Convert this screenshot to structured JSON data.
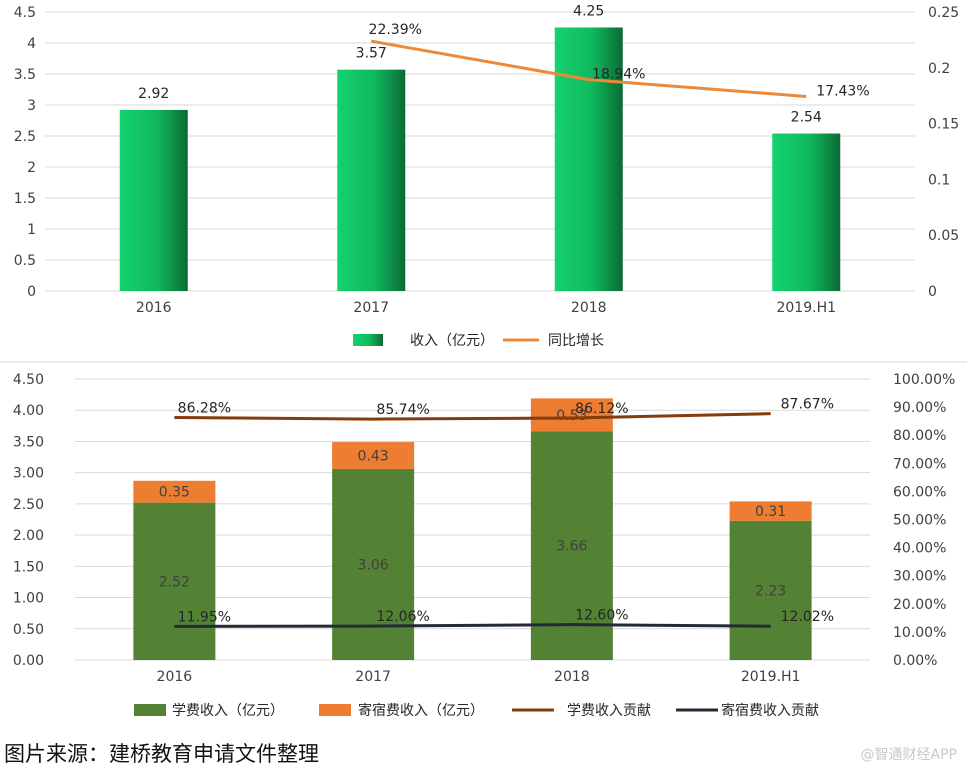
{
  "chart_data": [
    {
      "type": "bar",
      "categories": [
        "2016",
        "2017",
        "2018",
        "2019.H1"
      ],
      "series": [
        {
          "name": "收入（亿元）",
          "type": "bar",
          "axis": "left",
          "values": [
            2.92,
            3.57,
            4.25,
            2.54
          ],
          "labels": [
            "2.92",
            "3.57",
            "4.25",
            "2.54"
          ],
          "color": "#1ec36a"
        },
        {
          "name": "同比增长",
          "type": "line",
          "axis": "right",
          "values": [
            null,
            0.2239,
            0.1894,
            0.1743
          ],
          "labels": [
            "",
            "22.39%",
            "18.94%",
            "17.43%"
          ],
          "color": "#ed8a3a"
        }
      ],
      "ylim": [
        0,
        4.5
      ],
      "y_ticks": [
        "0",
        "0.5",
        "1",
        "1.5",
        "2",
        "2.5",
        "3",
        "3.5",
        "4",
        "4.5"
      ],
      "y2lim": [
        0,
        0.25
      ],
      "y2_ticks": [
        "0",
        "0.05",
        "0.1",
        "0.15",
        "0.2",
        "0.25"
      ],
      "grid": true,
      "legend": "bottom"
    },
    {
      "type": "bar",
      "stacked": true,
      "categories": [
        "2016",
        "2017",
        "2018",
        "2019.H1"
      ],
      "series": [
        {
          "name": "学费收入（亿元）",
          "type": "bar",
          "axis": "left",
          "values": [
            2.52,
            3.06,
            3.66,
            2.23
          ],
          "labels": [
            "2.52",
            "3.06",
            "3.66",
            "2.23"
          ],
          "color": "#548235"
        },
        {
          "name": "寄宿费收入（亿元）",
          "type": "bar",
          "axis": "left",
          "values": [
            0.35,
            0.43,
            0.53,
            0.31
          ],
          "labels": [
            "0.35",
            "0.43",
            "0.53",
            "0.31"
          ],
          "color": "#ed7d31"
        },
        {
          "name": "学费收入贡献",
          "type": "line",
          "axis": "right",
          "values": [
            0.8628,
            0.8574,
            0.8612,
            0.8767
          ],
          "labels": [
            "86.28%",
            "85.74%",
            "86.12%",
            "87.67%"
          ],
          "color": "#843c0c"
        },
        {
          "name": "寄宿费收入贡献",
          "type": "line",
          "axis": "right",
          "values": [
            0.1195,
            0.1206,
            0.126,
            0.1202
          ],
          "labels": [
            "11.95%",
            "12.06%",
            "12.60%",
            "12.02%"
          ],
          "color": "#222a35"
        }
      ],
      "ylim": [
        0,
        4.5
      ],
      "y_ticks": [
        "0.00",
        "0.50",
        "1.00",
        "1.50",
        "2.00",
        "2.50",
        "3.00",
        "3.50",
        "4.00",
        "4.50"
      ],
      "y2lim": [
        0,
        1
      ],
      "y2_ticks": [
        "0.00%",
        "10.00%",
        "20.00%",
        "30.00%",
        "40.00%",
        "50.00%",
        "60.00%",
        "70.00%",
        "80.00%",
        "90.00%",
        "100.00%"
      ],
      "grid": true,
      "legend": "bottom"
    }
  ],
  "footer": {
    "source": "图片来源：建桥教育申请文件整理",
    "watermark": "@智通财经APP"
  }
}
